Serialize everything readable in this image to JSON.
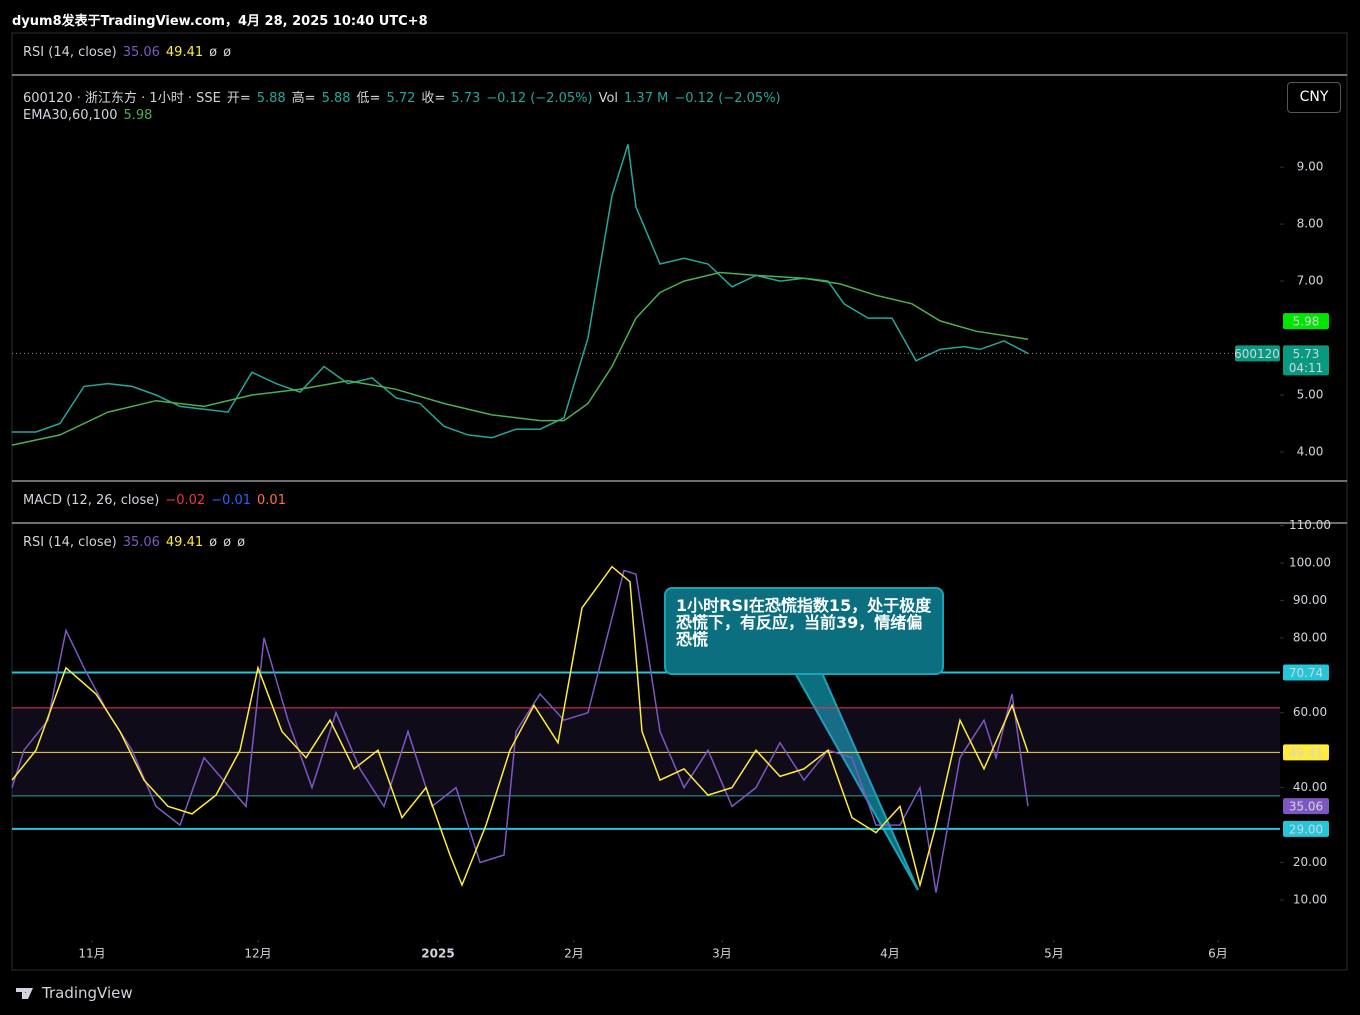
{
  "header": {
    "top": "dyum8发表于TradingView.com，4月 28, 2025 10:40 UTC+8",
    "currency": "CNY",
    "price_tag": "600120",
    "countdown": "04:11",
    "logo": "TradingView",
    "annotation": "1小时RSI在恐慌指数15，处于极度恐慌下，有反应，当前39，情绪偏恐慌",
    "rsi_top_legend": [
      {
        "text": "RSI (14, close)",
        "color": "#d1d4dc"
      },
      {
        "text": "35.06",
        "color": "#7e57c2"
      },
      {
        "text": "49.41",
        "color": "#ffeb3b"
      },
      {
        "text": "ø",
        "color": "#d1d4dc"
      },
      {
        "text": "ø",
        "color": "#d1d4dc"
      }
    ],
    "price_legend": [
      {
        "text": "600120 · 浙江东方 · 1小时 · SSE",
        "color": "#d1d4dc"
      },
      {
        "text": "开=",
        "color": "#d1d4dc"
      },
      {
        "text": "5.88",
        "color": "#26a69a"
      },
      {
        "text": "高=",
        "color": "#d1d4dc"
      },
      {
        "text": "5.88",
        "color": "#26a69a"
      },
      {
        "text": "低=",
        "color": "#d1d4dc"
      },
      {
        "text": "5.72",
        "color": "#26a69a"
      },
      {
        "text": "收=",
        "color": "#d1d4dc"
      },
      {
        "text": "5.73",
        "color": "#26a69a"
      },
      {
        "text": "−0.12 (−2.05%)",
        "color": "#26a69a"
      },
      {
        "text": "Vol",
        "color": "#d1d4dc"
      },
      {
        "text": "1.37 M",
        "color": "#26a69a"
      },
      {
        "text": "−0.12 (−2.05%)",
        "color": "#26a69a"
      }
    ],
    "ema_legend": [
      {
        "text": "EMA30,60,100",
        "color": "#d1d4dc"
      },
      {
        "text": "5.98",
        "color": "#4caf50"
      }
    ],
    "macd_legend": [
      {
        "text": "MACD (12, 26, close)",
        "color": "#d1d4dc"
      },
      {
        "text": "−0.02",
        "color": "#f23645"
      },
      {
        "text": "−0.01",
        "color": "#2962ff"
      },
      {
        "text": "0.01",
        "color": "#ff7043"
      }
    ],
    "rsi_legend": [
      {
        "text": "RSI (14, close)",
        "color": "#d1d4dc"
      },
      {
        "text": "35.06",
        "color": "#7e57c2"
      },
      {
        "text": "49.41",
        "color": "#ffeb3b"
      },
      {
        "text": "ø",
        "color": "#d1d4dc"
      },
      {
        "text": "ø",
        "color": "#d1d4dc"
      },
      {
        "text": "ø",
        "color": "#d1d4dc"
      }
    ]
  },
  "chart_data": [
    {
      "type": "line",
      "xlim": [
        0,
        634
      ],
      "ylim": [
        3.49,
        10.6
      ],
      "yticks": [
        {
          "value": 4,
          "label": "4.00"
        },
        {
          "value": 5,
          "label": "5.00"
        },
        {
          "value": 7,
          "label": "7.00"
        },
        {
          "value": 8,
          "label": "8.00"
        },
        {
          "value": 9,
          "label": "9.00"
        }
      ],
      "series": [
        {
          "color": "#26a69a",
          "x": [
            0,
            12,
            24,
            36,
            48,
            60,
            72,
            84,
            96,
            108,
            120,
            132,
            144,
            156,
            168,
            180,
            192,
            204,
            216,
            228,
            240,
            252,
            264,
            276,
            288,
            300,
            308,
            312,
            324,
            336,
            348,
            360,
            372,
            384,
            396,
            408,
            416,
            428,
            440,
            452,
            464,
            476,
            484,
            496,
            508
          ],
          "values": [
            4.35,
            4.35,
            4.5,
            5.15,
            5.2,
            5.15,
            5.0,
            4.8,
            4.75,
            4.7,
            5.4,
            5.2,
            5.05,
            5.5,
            5.2,
            5.3,
            4.95,
            4.85,
            4.45,
            4.3,
            4.25,
            4.4,
            4.4,
            4.6,
            6.0,
            8.5,
            9.4,
            8.3,
            7.3,
            7.4,
            7.3,
            6.9,
            7.1,
            7.0,
            7.05,
            7.0,
            6.6,
            6.35,
            6.35,
            5.6,
            5.8,
            5.85,
            5.8,
            5.95,
            5.73
          ]
        },
        {
          "color": "#4caf50",
          "x": [
            0,
            24,
            48,
            72,
            96,
            120,
            144,
            168,
            192,
            216,
            240,
            264,
            276,
            288,
            300,
            312,
            324,
            336,
            354,
            372,
            396,
            414,
            432,
            450,
            464,
            482,
            508
          ],
          "values": [
            4.12,
            4.3,
            4.7,
            4.9,
            4.8,
            5.0,
            5.1,
            5.25,
            5.1,
            4.85,
            4.65,
            4.55,
            4.55,
            4.85,
            5.5,
            6.35,
            6.8,
            7.0,
            7.15,
            7.1,
            7.05,
            6.95,
            6.75,
            6.6,
            6.3,
            6.12,
            5.98
          ]
        }
      ]
    },
    {
      "type": "line",
      "xlim": [
        0,
        634
      ],
      "ylim": [
        0.65,
        110.4
      ],
      "xticks": [
        {
          "value": 40,
          "label": "11月"
        },
        {
          "value": 123,
          "label": "12月"
        },
        {
          "value": 213,
          "label": "2025"
        },
        {
          "value": 281,
          "label": "2月"
        },
        {
          "value": 355,
          "label": "3月"
        },
        {
          "value": 439,
          "label": "4月"
        },
        {
          "value": 521,
          "label": "5月"
        },
        {
          "value": 603,
          "label": "6月"
        }
      ],
      "yticks": [
        {
          "value": 10,
          "label": "10.00"
        },
        {
          "value": 20,
          "label": "20.00"
        },
        {
          "value": 40,
          "label": "40.00"
        },
        {
          "value": 60,
          "label": "60.00"
        },
        {
          "value": 80,
          "label": "80.00"
        },
        {
          "value": 90,
          "label": "90.00"
        },
        {
          "value": 100,
          "label": "100.00"
        },
        {
          "value": 110,
          "label": "110.00"
        }
      ],
      "levels": [
        {
          "value": 70.74,
          "color": "#26c6da"
        },
        {
          "value": 61.3,
          "color": "#f23645"
        },
        {
          "value": 49.41,
          "color": "#ffeb3b"
        },
        {
          "value": 37.8,
          "color": "#26a69a"
        },
        {
          "value": 29,
          "label": "29.00",
          "color": "#26c6da"
        }
      ],
      "series": [
        {
          "color": "#7e57c2",
          "x": [
            0,
            6,
            18,
            27,
            36,
            48,
            60,
            72,
            84,
            96,
            117,
            126,
            138,
            150,
            162,
            174,
            186,
            198,
            210,
            222,
            234,
            246,
            252,
            264,
            276,
            288,
            306,
            312,
            324,
            336,
            348,
            360,
            372,
            384,
            396,
            408,
            420,
            432,
            444,
            454,
            462,
            474,
            486,
            492,
            500,
            508
          ],
          "values": [
            40,
            50,
            58,
            82,
            72,
            60,
            50,
            35,
            30,
            48,
            35,
            80,
            58,
            40,
            60,
            45,
            35,
            55,
            35,
            40,
            20,
            22,
            55,
            65,
            58,
            60,
            98,
            97,
            55,
            40,
            50,
            35,
            40,
            52,
            42,
            50,
            48,
            30,
            30,
            40,
            12,
            48,
            58,
            48,
            65,
            35.06
          ]
        },
        {
          "color": "#ffeb3b",
          "x": [
            0,
            12,
            27,
            42,
            54,
            66,
            78,
            90,
            102,
            114,
            123,
            135,
            147,
            159,
            171,
            183,
            195,
            207,
            219,
            225,
            237,
            249,
            261,
            273,
            285,
            300,
            309,
            315,
            324,
            336,
            348,
            360,
            372,
            384,
            396,
            408,
            420,
            432,
            444,
            454,
            462,
            474,
            486,
            500,
            508
          ],
          "values": [
            42,
            50,
            72,
            65,
            55,
            42,
            35,
            33,
            38,
            50,
            72,
            55,
            48,
            58,
            45,
            50,
            32,
            40,
            22,
            14,
            30,
            50,
            62,
            52,
            88,
            99,
            95,
            55,
            42,
            45,
            38,
            40,
            50,
            43,
            45,
            50,
            32,
            28,
            35,
            14,
            30,
            58,
            45,
            62,
            49.41
          ]
        }
      ]
    }
  ]
}
